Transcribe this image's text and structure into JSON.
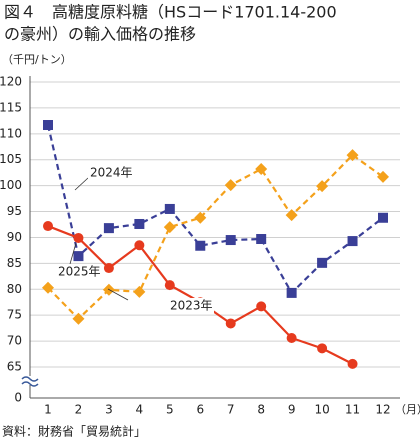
{
  "chart_data": {
    "type": "line",
    "title": [
      "図４　高糖度原料糖（HSコード1701.14-200",
      "の豪州）の輸入価格の推移"
    ],
    "y_label": "（千円/トン）",
    "x_label": "（月）",
    "source": "資料：財務省「貿易統計」",
    "categories": [
      "1",
      "2",
      "3",
      "4",
      "5",
      "6",
      "7",
      "8",
      "9",
      "10",
      "11",
      "12"
    ],
    "ylim": [
      65,
      120
    ],
    "yticks": [
      0,
      65,
      70,
      75,
      80,
      85,
      90,
      95,
      100,
      105,
      110,
      115,
      120
    ],
    "axis_break": true,
    "grid": true,
    "series": [
      {
        "name": "2024年",
        "color": "#3a3f97",
        "dash": true,
        "marker": "square",
        "values": [
          111.7,
          86.4,
          91.8,
          92.6,
          95.5,
          88.4,
          89.5,
          89.7,
          79.3,
          85.1,
          89.3,
          93.8
        ]
      },
      {
        "name": "2023年",
        "color": "#f4a11b",
        "dash": true,
        "marker": "diamond",
        "values": [
          80.3,
          74.3,
          79.9,
          79.5,
          92,
          93.8,
          100.1,
          103.2,
          94.3,
          99.9,
          105.9,
          101.7
        ]
      },
      {
        "name": "2025年",
        "color": "#e63a1e",
        "dash": false,
        "marker": "circle",
        "values": [
          92.2,
          89.9,
          84.1,
          88.5,
          80.8,
          77.5,
          73.4,
          76.7,
          70.6,
          68.6,
          65.6,
          null
        ]
      }
    ]
  }
}
